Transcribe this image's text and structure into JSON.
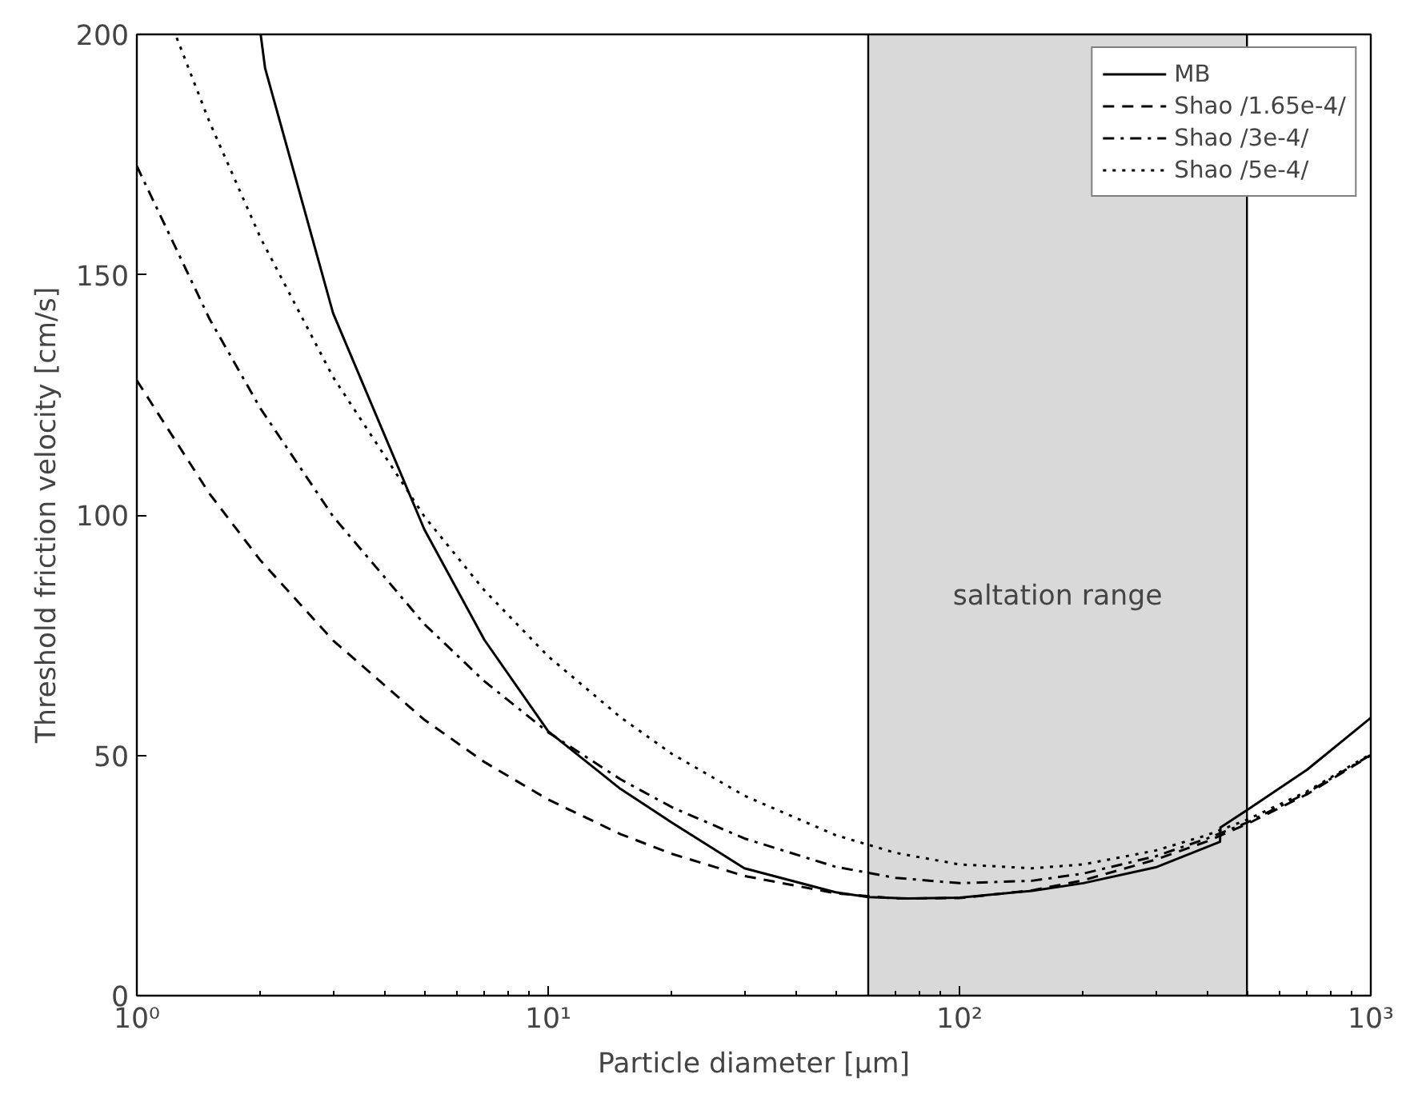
{
  "chart_data": {
    "type": "line",
    "xlabel": "Particle diameter [μm]",
    "ylabel": "Threshold friction velocity [cm/s]",
    "log": "x",
    "xlim": [
      1,
      1000
    ],
    "ylim": [
      0,
      200
    ],
    "xticks": [
      {
        "value": 1,
        "label": "10⁰"
      },
      {
        "value": 10,
        "label": "10¹"
      },
      {
        "value": 100,
        "label": "10²"
      },
      {
        "value": 1000,
        "label": "10³"
      }
    ],
    "yticks": [
      0,
      50,
      100,
      150,
      200
    ],
    "grid": false,
    "legend": "top right",
    "series": [
      {
        "name": "MB",
        "color": "#000000",
        "line_style": "solid",
        "x": [
          2,
          2.05,
          3,
          5,
          7,
          10,
          15,
          20,
          30,
          50,
          60,
          75,
          100,
          150,
          200,
          300,
          430,
          431,
          500,
          700,
          1000
        ],
        "values": [
          200,
          193,
          142,
          97,
          74,
          55,
          43,
          36,
          26.5,
          21.5,
          20.5,
          20.2,
          20.4,
          21.8,
          23.4,
          26.7,
          32,
          35,
          38.6,
          47,
          57.8
        ]
      },
      {
        "name": "Shao /1.65e-4/",
        "color": "#000000",
        "line_style": "dashed",
        "x": [
          1,
          1.5,
          2,
          3,
          5,
          7,
          10,
          15,
          20,
          30,
          50,
          70,
          100,
          150,
          200,
          300,
          400,
          500,
          700,
          1000
        ],
        "values": [
          128,
          104.5,
          90.5,
          73.9,
          57.4,
          48.6,
          40.8,
          33.6,
          29.5,
          24.9,
          21.3,
          20.2,
          20.3,
          21.9,
          24,
          28.3,
          32.1,
          35.7,
          41.9,
          50
        ]
      },
      {
        "name": "Shao /3e-4/",
        "color": "#000000",
        "line_style": "dashdot",
        "x": [
          1,
          1.5,
          2,
          3,
          5,
          7,
          10,
          15,
          20,
          30,
          50,
          70,
          100,
          150,
          200,
          300,
          400,
          500,
          700,
          1000
        ],
        "values": [
          172.6,
          140.9,
          122.1,
          99.7,
          77.3,
          65.4,
          54.8,
          45,
          39.2,
          32.7,
          26.8,
          24.5,
          23.4,
          23.9,
          25.4,
          29,
          32.7,
          36,
          42.2,
          50.1
        ]
      },
      {
        "name": "Shao /5e-4/",
        "color": "#000000",
        "line_style": "dotted",
        "x": [
          1.25,
          1.5,
          2,
          3,
          5,
          7,
          10,
          15,
          20,
          30,
          50,
          70,
          100,
          150,
          200,
          300,
          400,
          500,
          700,
          1000
        ],
        "values": [
          199.3,
          181.9,
          157.6,
          128.7,
          99.7,
          84.3,
          70.6,
          57.9,
          50.3,
          41.6,
          33.4,
          29.7,
          27.3,
          26.5,
          27.3,
          30.2,
          33.4,
          36.6,
          42.5,
          50.3
        ]
      }
    ],
    "bands": [
      {
        "axis": "x",
        "from": 60,
        "to": 500,
        "label": "saltation range",
        "color": "#d9d9d9"
      }
    ]
  }
}
